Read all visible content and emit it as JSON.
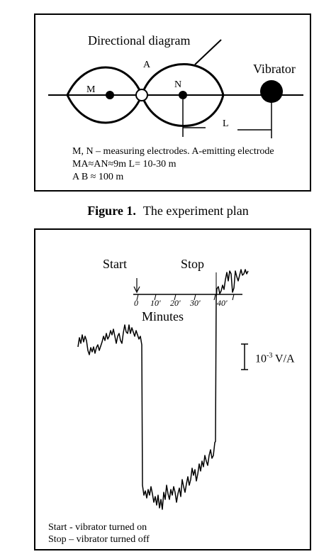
{
  "figure1": {
    "title": "Directional diagram",
    "label_A": "A",
    "label_M": "M",
    "label_N": "N",
    "label_vibrator": "Vibrator",
    "label_L": "L",
    "notes": [
      "M, N – measuring electrodes. A-emitting electrode",
      "MA≈AN≈9m   L= 10-30 m",
      "A B ≈ 100 m"
    ],
    "caption_number": "Figure 1.",
    "caption_text": "The experiment plan"
  },
  "figure2": {
    "start_label": "Start",
    "stop_label": "Stop",
    "ticks": [
      "0",
      "10'",
      "20'",
      "30'",
      "40'"
    ],
    "axis_label": "Minutes",
    "scale_base": "10",
    "scale_exp": "-3",
    "scale_unit": " V/A",
    "legend": [
      "Start -  vibrator turned on",
      "Stop – vibrator turned off"
    ]
  }
}
